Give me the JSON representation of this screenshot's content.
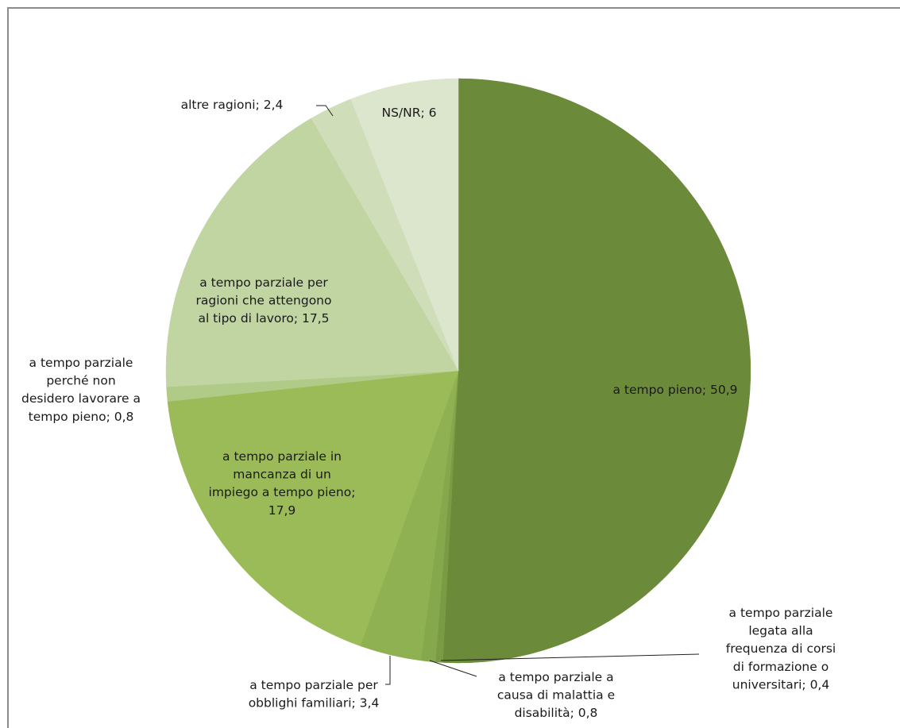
{
  "chart_data": {
    "type": "pie",
    "title": "",
    "legend": "none",
    "slices": [
      {
        "value": 50.9,
        "color": "#6b8a3a",
        "label": [
          "a tempo pieno; 50,9"
        ]
      },
      {
        "value": 0.4,
        "color": "#7a9a44",
        "label": [
          "a tempo parziale",
          "legata alla",
          "frequenza di corsi",
          "di formazione o",
          "universitari; 0,4"
        ]
      },
      {
        "value": 0.8,
        "color": "#86a84d",
        "label": [
          "a tempo parziale a",
          "causa di malattia e",
          "disabilità; 0,8"
        ]
      },
      {
        "value": 3.4,
        "color": "#8fb152",
        "label": [
          "a tempo parziale per",
          "obblighi familiari; 3,4"
        ]
      },
      {
        "value": 17.9,
        "color": "#9bbb59",
        "label": [
          "a tempo parziale in",
          "mancanza di un",
          "impiego a tempo pieno;",
          "17,9"
        ]
      },
      {
        "value": 0.8,
        "color": "#b0cb88",
        "label": [
          "a tempo parziale",
          "perché non",
          "desidero lavorare a",
          "tempo pieno; 0,8"
        ]
      },
      {
        "value": 17.5,
        "color": "#c1d5a2",
        "label": [
          "a tempo parziale per",
          "ragioni che attengono",
          "al tipo di lavoro; 17,5"
        ]
      },
      {
        "value": 2.4,
        "color": "#cfdeb9",
        "label": [
          "altre ragioni; 2,4"
        ]
      },
      {
        "value": 6,
        "color": "#dce6cc",
        "label": [
          "NS/NR; 6"
        ]
      }
    ]
  }
}
